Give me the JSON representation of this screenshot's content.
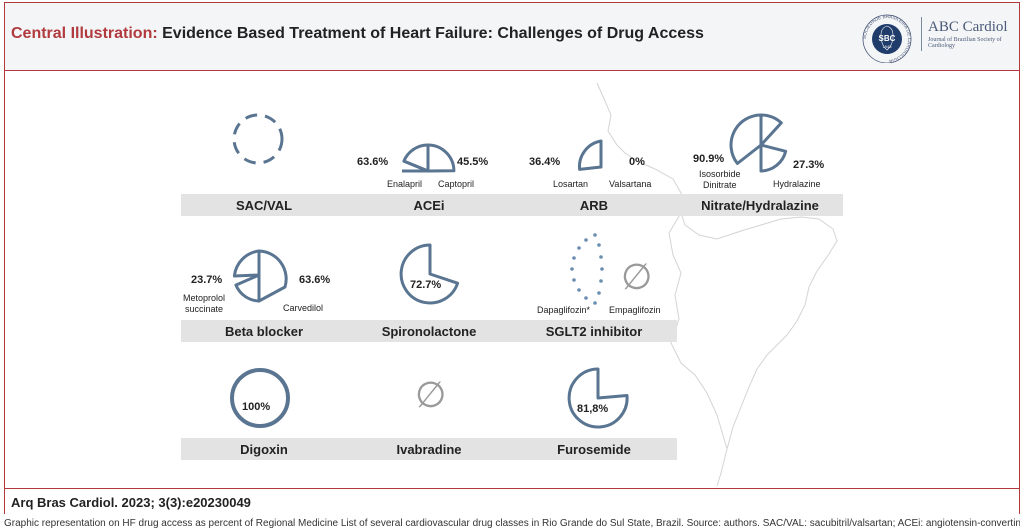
{
  "header": {
    "title_prefix": "Central Illustration:",
    "title_rest": " Evidence Based Treatment of Heart Failure: Challenges of Drug Access",
    "logo": {
      "seal_text": "SOCIEDADE BRASILEIRA DE CARDIOLOGIA",
      "seal_abbr": "SBC",
      "seal_year": "1943",
      "name": "ABC Cardiol",
      "subtitle": "Journal of Brazilian Society of Cardiology"
    }
  },
  "groups": {
    "sacval": {
      "label": "SAC/VAL"
    },
    "acei": {
      "label": "ACEi",
      "drug1": "Enalapril",
      "value1": "63.6%",
      "drug2": "Captopril",
      "value2": "45.5%"
    },
    "arb": {
      "label": "ARB",
      "drug1": "Losartan",
      "value1": "36.4%",
      "drug2": "Valsartana",
      "value2": "0%"
    },
    "nitrate": {
      "label": "Nitrate/Hydralazine",
      "drug1_line1": "Isosorbide",
      "drug1_line2": "Dinitrate",
      "value1": "90.9%",
      "drug2": "Hydralazine",
      "value2": "27.3%"
    },
    "beta": {
      "label": "Beta blocker",
      "drug1_line1": "Metoprolol",
      "drug1_line2": "succinate",
      "value1": "23.7%",
      "drug2": "Carvedilol",
      "value2": "63.6%"
    },
    "spiro": {
      "label": "Spironolactone",
      "value": "72.7%"
    },
    "sglt2": {
      "label": "SGLT2 inhibitor",
      "drug1": "Dapaglifozin*",
      "drug2": "Empaglifozin",
      "empty_symbol": "∅"
    },
    "digoxin": {
      "label": "Digoxin",
      "value": "100%"
    },
    "ivabradine": {
      "label": "Ivabradine",
      "empty_symbol": "∅"
    },
    "furosemide": {
      "label": "Furosemide",
      "value": "81,8%"
    }
  },
  "footer": {
    "citation": "Arq Bras Cardiol. 2023; 3(3):e20230049"
  },
  "caption": "Graphic representation on HF drug access as percent of Regional Medicine List of several cardiovascular drug classes in Rio Grande do Sul State, Brazil. Source: authors. SAC/VAL: sacubitril/valsartan; ACEi: angiotensin-converting enzyme inhibitor; ARB: angiotensin receptor blocker.",
  "colors": {
    "accent_red": "#b03a3e",
    "glyph_blue": "#5a7591",
    "dot_blue": "#6a8db0",
    "label_gray": "#e3e3e3",
    "empty_gray": "#9a9a9a"
  }
}
